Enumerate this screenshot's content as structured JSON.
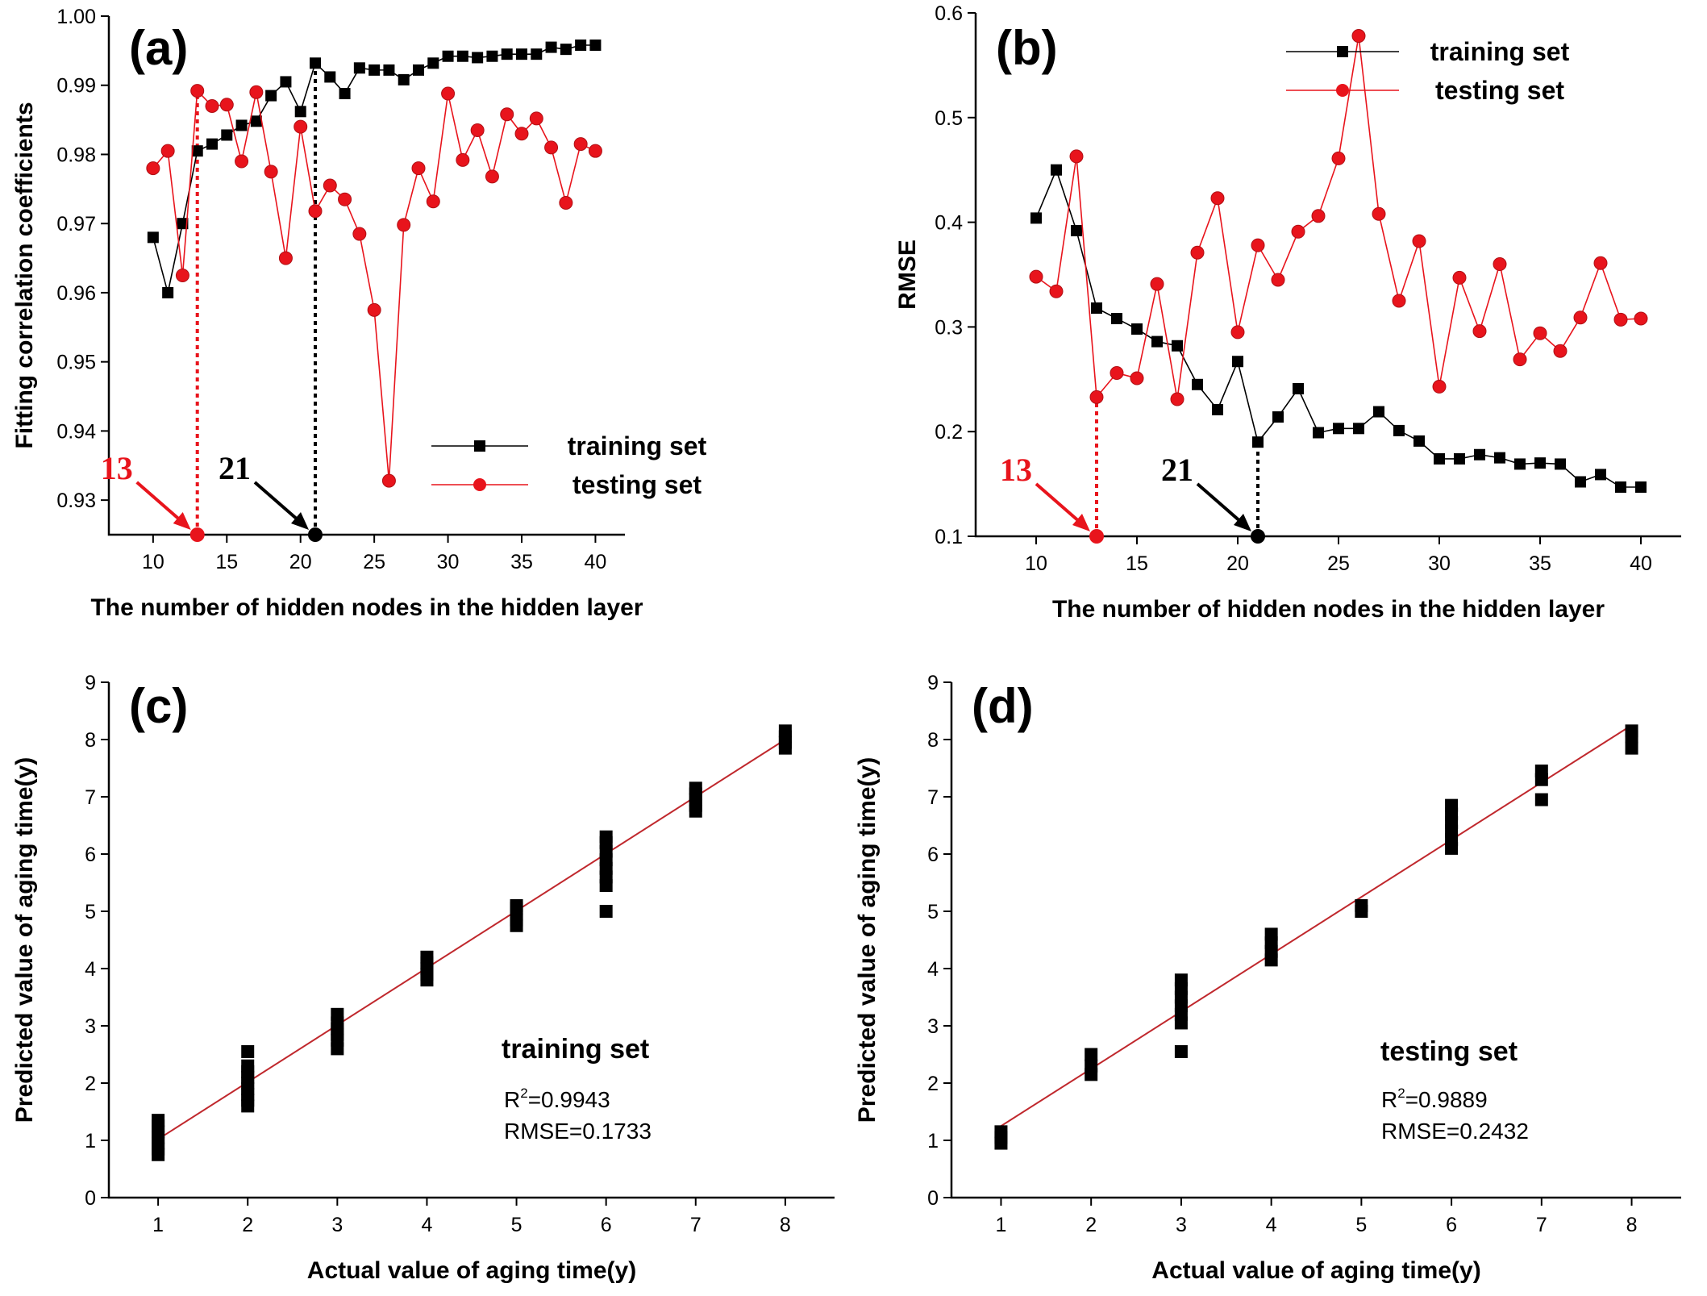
{
  "chart_data": [
    {
      "type": "line",
      "panel_label": "(a)",
      "xlabel": "The number of hidden nodes in the hidden layer",
      "ylabel": "Fitting correlation coefficients",
      "xlim": [
        7,
        42
      ],
      "ylim": [
        0.925,
        1.0
      ],
      "xticks": [
        10,
        15,
        20,
        25,
        30,
        35,
        40
      ],
      "yticks": [
        "0.93",
        "0.94",
        "0.95",
        "0.96",
        "0.97",
        "0.98",
        "0.99",
        "1.00"
      ],
      "legend_position": "lower-right",
      "x": [
        10,
        11,
        12,
        13,
        14,
        15,
        16,
        17,
        18,
        19,
        20,
        21,
        22,
        23,
        24,
        25,
        26,
        27,
        28,
        29,
        30,
        31,
        32,
        33,
        34,
        35,
        36,
        37,
        38,
        39,
        40
      ],
      "series": [
        {
          "name": "training set",
          "color": "#000000",
          "marker": "square",
          "values": [
            0.968,
            0.96,
            0.97,
            0.9805,
            0.9815,
            0.9828,
            0.9842,
            0.9848,
            0.9885,
            0.9905,
            0.9862,
            0.9932,
            0.9912,
            0.9888,
            0.9925,
            0.9922,
            0.9922,
            0.9908,
            0.9922,
            0.9932,
            0.9942,
            0.9942,
            0.994,
            0.9942,
            0.9945,
            0.9945,
            0.9945,
            0.9955,
            0.9952,
            0.9958,
            0.9958
          ]
        },
        {
          "name": "testing set",
          "color": "#e8141c",
          "marker": "circle",
          "values": [
            0.978,
            0.9805,
            0.9625,
            0.9892,
            0.987,
            0.9872,
            0.979,
            0.989,
            0.9775,
            0.965,
            0.984,
            0.9718,
            0.9755,
            0.9735,
            0.9685,
            0.9575,
            0.9328,
            0.9698,
            0.978,
            0.9732,
            0.9888,
            0.9792,
            0.9835,
            0.9768,
            0.9858,
            0.983,
            0.9852,
            0.981,
            0.973,
            0.9815,
            0.9805
          ]
        }
      ],
      "annotations": [
        {
          "label": "13",
          "x": 13,
          "color": "#e8141c",
          "line_to": 0.9892
        },
        {
          "label": "21",
          "x": 21,
          "color": "#000000",
          "line_to": 0.9932
        }
      ]
    },
    {
      "type": "line",
      "panel_label": "(b)",
      "xlabel": "The number of hidden nodes in the hidden layer",
      "ylabel": "RMSE",
      "xlim": [
        7,
        42
      ],
      "ylim": [
        0.1,
        0.6
      ],
      "xticks": [
        10,
        15,
        20,
        25,
        30,
        35,
        40
      ],
      "yticks": [
        "0.1",
        "0.2",
        "0.3",
        "0.4",
        "0.5",
        "0.6"
      ],
      "legend_position": "top-right",
      "x": [
        10,
        11,
        12,
        13,
        14,
        15,
        16,
        17,
        18,
        19,
        20,
        21,
        22,
        23,
        24,
        25,
        26,
        27,
        28,
        29,
        30,
        31,
        32,
        33,
        34,
        35,
        36,
        37,
        38,
        39,
        40
      ],
      "series": [
        {
          "name": "training set",
          "color": "#000000",
          "marker": "square",
          "values": [
            0.404,
            0.45,
            0.392,
            0.318,
            0.308,
            0.298,
            0.286,
            0.282,
            0.245,
            0.221,
            0.267,
            0.19,
            0.214,
            0.241,
            0.199,
            0.203,
            0.203,
            0.219,
            0.201,
            0.191,
            0.174,
            0.174,
            0.178,
            0.175,
            0.169,
            0.17,
            0.169,
            0.152,
            0.159,
            0.147,
            0.147
          ]
        },
        {
          "name": "testing set",
          "color": "#e8141c",
          "marker": "circle",
          "values": [
            0.348,
            0.334,
            0.463,
            0.233,
            0.256,
            0.251,
            0.341,
            0.231,
            0.371,
            0.423,
            0.295,
            0.378,
            0.345,
            0.391,
            0.406,
            0.461,
            0.578,
            0.408,
            0.325,
            0.382,
            0.243,
            0.347,
            0.296,
            0.36,
            0.269,
            0.294,
            0.277,
            0.309,
            0.361,
            0.307,
            0.308
          ]
        }
      ],
      "annotations": [
        {
          "label": "13",
          "x": 13,
          "color": "#e8141c",
          "line_to": 0.233
        },
        {
          "label": "21",
          "x": 21,
          "color": "#000000",
          "line_to": 0.19
        }
      ]
    },
    {
      "type": "scatter",
      "panel_label": "(c)",
      "xlabel": "Actual value of aging time(y)",
      "ylabel": "Predicted value of aging time(y)",
      "xlim": [
        0.45,
        8.55
      ],
      "ylim": [
        0,
        9
      ],
      "xticks": [
        1,
        2,
        3,
        4,
        5,
        6,
        7,
        8
      ],
      "yticks": [
        "0",
        "1",
        "2",
        "3",
        "4",
        "5",
        "6",
        "7",
        "8",
        "9"
      ],
      "series_label": "training set",
      "r2_label": "R",
      "r2_sup": "2",
      "r2_value": "=0.9943",
      "rmse_text": "RMSE=0.1733",
      "fit_line": {
        "color": "#c0282d",
        "from": [
          1,
          1.02
        ],
        "to": [
          8,
          8.0
        ]
      },
      "points": [
        {
          "x": 1,
          "y": [
            0.75,
            0.85,
            0.95,
            1.05,
            1.15,
            1.25,
            1.35
          ]
        },
        {
          "x": 2,
          "y": [
            1.6,
            1.7,
            1.8,
            1.9,
            2.0,
            2.1,
            2.2,
            2.3,
            2.55
          ]
        },
        {
          "x": 3,
          "y": [
            2.6,
            2.75,
            2.85,
            2.95,
            3.05,
            3.2
          ]
        },
        {
          "x": 4,
          "y": [
            3.8,
            3.9,
            4.0,
            4.1,
            4.2
          ]
        },
        {
          "x": 5,
          "y": [
            4.75,
            4.85,
            4.95,
            5.05,
            5.1
          ]
        },
        {
          "x": 6,
          "y": [
            5.0,
            5.45,
            5.6,
            5.75,
            5.9,
            6.05,
            6.2,
            6.3
          ]
        },
        {
          "x": 7,
          "y": [
            6.75,
            6.85,
            6.95,
            7.05,
            7.15
          ]
        },
        {
          "x": 8,
          "y": [
            7.85,
            7.95,
            8.05,
            8.15
          ]
        }
      ]
    },
    {
      "type": "scatter",
      "panel_label": "(d)",
      "xlabel": "Actual value of aging time(y)",
      "ylabel": "Predicted value of aging time(y)",
      "xlim": [
        0.45,
        8.55
      ],
      "ylim": [
        0,
        9
      ],
      "xticks": [
        1,
        2,
        3,
        4,
        5,
        6,
        7,
        8
      ],
      "yticks": [
        "0",
        "1",
        "2",
        "3",
        "4",
        "5",
        "6",
        "7",
        "8",
        "9"
      ],
      "series_label": "testing set",
      "r2_label": "R",
      "r2_sup": "2",
      "r2_value": "=0.9889",
      "rmse_text": "RMSE=0.2432",
      "fit_line": {
        "color": "#c0282d",
        "from": [
          1,
          1.25
        ],
        "to": [
          8,
          8.25
        ]
      },
      "points": [
        {
          "x": 1,
          "y": [
            0.95,
            1.05,
            1.15
          ]
        },
        {
          "x": 2,
          "y": [
            2.15,
            2.3,
            2.5
          ]
        },
        {
          "x": 3,
          "y": [
            2.55,
            3.05,
            3.2,
            3.35,
            3.5,
            3.65,
            3.8
          ]
        },
        {
          "x": 4,
          "y": [
            4.15,
            4.3,
            4.45,
            4.6
          ]
        },
        {
          "x": 5,
          "y": [
            5.0,
            5.1
          ]
        },
        {
          "x": 6,
          "y": [
            6.1,
            6.25,
            6.4,
            6.55,
            6.7,
            6.85
          ]
        },
        {
          "x": 7,
          "y": [
            6.95,
            7.3,
            7.45
          ]
        },
        {
          "x": 8,
          "y": [
            7.85,
            8.05,
            8.15
          ]
        }
      ]
    }
  ]
}
